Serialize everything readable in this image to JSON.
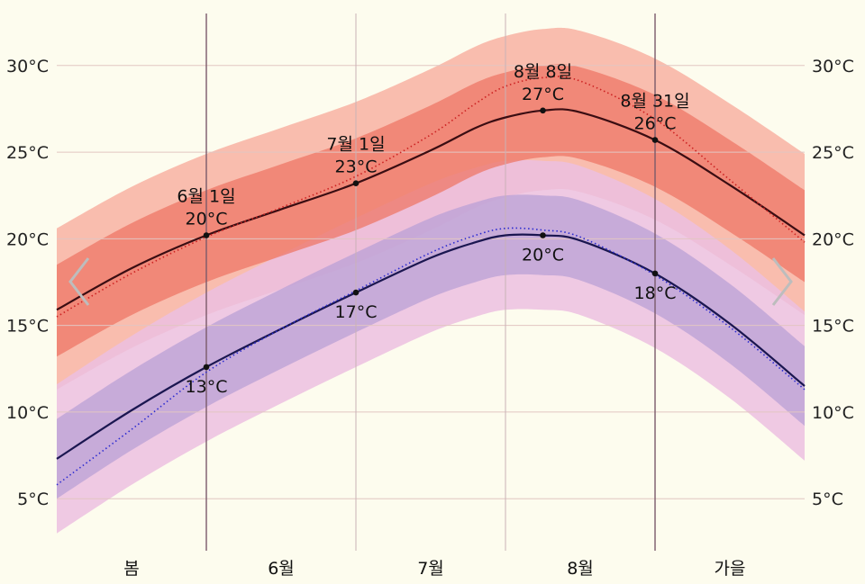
{
  "chart_data": {
    "type": "area",
    "y_unit": "°C",
    "ylim": [
      2,
      33
    ],
    "y_ticks": [
      5,
      10,
      15,
      20,
      25,
      30
    ],
    "y_tick_labels": [
      "5°C",
      "10°C",
      "15°C",
      "20°C",
      "25°C",
      "30°C"
    ],
    "x_range_days": [
      0,
      100
    ],
    "grid": true,
    "segments": [
      {
        "label": "봄",
        "start": 0,
        "end": 20
      },
      {
        "label": "6월",
        "start": 20,
        "end": 40
      },
      {
        "label": "7월",
        "start": 40,
        "end": 60
      },
      {
        "label": "8월",
        "start": 60,
        "end": 80
      },
      {
        "label": "가을",
        "start": 80,
        "end": 100
      }
    ],
    "x": [
      0,
      10,
      20,
      30,
      40,
      50,
      56,
      60,
      65,
      70,
      80,
      90,
      100
    ],
    "series": [
      {
        "color": "#3a0d12",
        "style": "solid",
        "values": [
          15.9,
          18.3,
          20.2,
          21.7,
          23.2,
          25.1,
          26.4,
          27.0,
          27.4,
          27.3,
          25.7,
          23.1,
          20.2
        ],
        "band_inner": {
          "color": "#ee7766",
          "low": [
            13.2,
            15.6,
            17.5,
            19.0,
            20.5,
            22.4,
            23.7,
            24.3,
            24.7,
            24.6,
            23.0,
            20.4,
            17.5
          ],
          "high": [
            18.5,
            20.9,
            22.8,
            24.3,
            25.8,
            27.7,
            29.0,
            29.6,
            30.0,
            29.9,
            28.3,
            25.7,
            22.8
          ]
        },
        "band_outer": {
          "color": "#f8b2a2",
          "low": [
            11.3,
            13.7,
            15.6,
            17.1,
            18.6,
            20.5,
            21.8,
            22.4,
            22.8,
            22.7,
            21.1,
            18.5,
            15.6
          ],
          "high": [
            20.6,
            23.0,
            24.9,
            26.4,
            27.9,
            29.8,
            31.1,
            31.7,
            32.1,
            32.0,
            30.4,
            27.8,
            24.9
          ]
        }
      },
      {
        "color": "#cc2222",
        "style": "dotted",
        "values": [
          15.5,
          18.0,
          20.1,
          21.8,
          23.6,
          26.0,
          27.8,
          28.8,
          29.3,
          29.1,
          26.9,
          23.4,
          19.8
        ]
      },
      {
        "color": "#1a1650",
        "style": "solid",
        "values": [
          7.3,
          10.1,
          12.6,
          14.8,
          16.9,
          18.9,
          19.8,
          20.2,
          20.2,
          19.9,
          18.0,
          15.1,
          11.5
        ],
        "band_inner": {
          "color": "#b9a0d6",
          "low": [
            5.0,
            7.8,
            10.3,
            12.5,
            14.6,
            16.6,
            17.5,
            17.9,
            17.9,
            17.6,
            15.7,
            12.8,
            9.2
          ],
          "high": [
            9.6,
            12.4,
            14.9,
            17.1,
            19.2,
            21.2,
            22.1,
            22.5,
            22.5,
            22.2,
            20.3,
            17.4,
            13.8
          ]
        },
        "band_outer": {
          "color": "#ecbfe0",
          "low": [
            3.0,
            5.8,
            8.3,
            10.5,
            12.6,
            14.6,
            15.5,
            15.9,
            15.9,
            15.6,
            13.7,
            10.8,
            7.2
          ],
          "high": [
            11.6,
            14.4,
            16.9,
            19.1,
            21.2,
            23.2,
            24.1,
            24.5,
            24.5,
            24.2,
            22.3,
            19.4,
            15.8
          ]
        }
      },
      {
        "color": "#2b2bd0",
        "style": "dotted",
        "values": [
          5.8,
          9.0,
          12.3,
          14.8,
          17.0,
          19.2,
          20.2,
          20.6,
          20.5,
          20.1,
          17.9,
          14.9,
          11.3
        ]
      }
    ],
    "markers": [
      {
        "x": 20,
        "y": 20.2,
        "labels": [
          "6월 1일",
          "20°C"
        ],
        "placement": "above"
      },
      {
        "x": 40,
        "y": 23.2,
        "labels": [
          "7월 1일",
          "23°C"
        ],
        "placement": "above"
      },
      {
        "x": 65,
        "y": 27.4,
        "labels": [
          "8월 8일",
          "27°C"
        ],
        "placement": "above"
      },
      {
        "x": 80,
        "y": 25.7,
        "labels": [
          "8월 31일",
          "26°C"
        ],
        "placement": "above"
      },
      {
        "x": 20,
        "y": 12.6,
        "labels": [
          "13°C"
        ],
        "placement": "below"
      },
      {
        "x": 40,
        "y": 16.9,
        "labels": [
          "17°C"
        ],
        "placement": "below"
      },
      {
        "x": 65,
        "y": 20.2,
        "labels": [
          "20°C"
        ],
        "placement": "below"
      },
      {
        "x": 80,
        "y": 18.0,
        "labels": [
          "18°C"
        ],
        "placement": "below"
      }
    ]
  },
  "nav": {
    "prev_icon": "chevron-left-icon",
    "next_icon": "chevron-right-icon"
  }
}
